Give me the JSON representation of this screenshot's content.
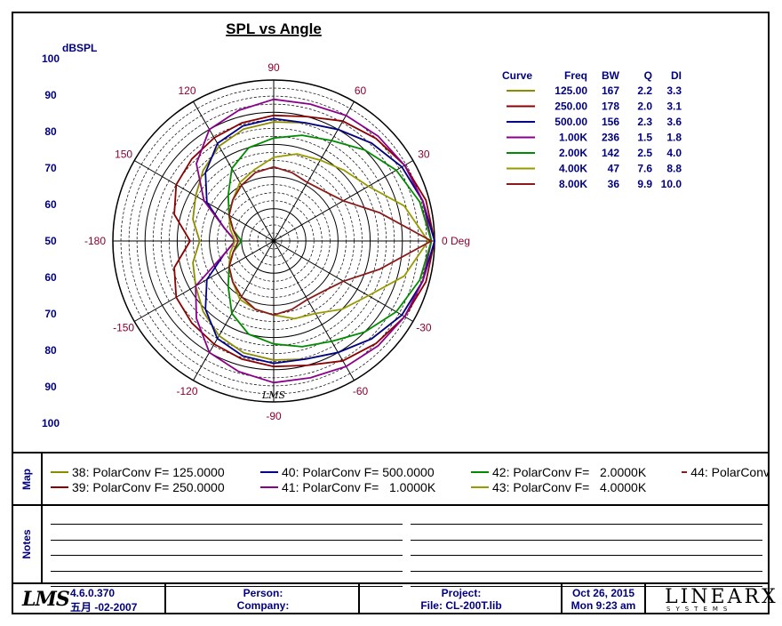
{
  "chart_data": {
    "type": "polar",
    "title": "SPL vs Angle",
    "radial_label": "dBSPL",
    "radial_range": [
      50,
      100
    ],
    "radial_ticks_upper": [
      "100",
      "90",
      "80",
      "70",
      "60",
      "50"
    ],
    "radial_ticks_lower": [
      "60",
      "70",
      "80",
      "90",
      "100"
    ],
    "angle_labels": [
      {
        "angle": 0,
        "text": "0 Deg"
      },
      {
        "angle": 30,
        "text": "30"
      },
      {
        "angle": 60,
        "text": "60"
      },
      {
        "angle": 90,
        "text": "90"
      },
      {
        "angle": 120,
        "text": "120"
      },
      {
        "angle": 150,
        "text": "150"
      },
      {
        "angle": 180,
        "text": "-180"
      },
      {
        "angle": -150,
        "text": "-150"
      },
      {
        "angle": -120,
        "text": "-120"
      },
      {
        "angle": -90,
        "text": "-90"
      },
      {
        "angle": -60,
        "text": "-60"
      },
      {
        "angle": -30,
        "text": "-30"
      }
    ],
    "angles": [
      0,
      15,
      30,
      45,
      60,
      75,
      90,
      105,
      120,
      135,
      150,
      165,
      180,
      195,
      210,
      225,
      240,
      255,
      270,
      285,
      300,
      315,
      330,
      345,
      360
    ],
    "series": [
      {
        "color": "#8b8b00",
        "values": [
          99,
          98,
          96,
          93,
          90,
          88,
          87,
          86,
          84,
          81,
          78,
          76,
          73,
          76,
          78,
          81,
          84,
          86,
          87,
          88,
          90,
          93,
          96,
          98,
          99
        ]
      },
      {
        "color": "#8b0000",
        "values": [
          100,
          99,
          97,
          95,
          93,
          90,
          89,
          88,
          87,
          86,
          85,
          82,
          76,
          82,
          85,
          86,
          87,
          88,
          89,
          90,
          93,
          95,
          97,
          99,
          100
        ]
      },
      {
        "color": "#00008b",
        "values": [
          100,
          98,
          96,
          93,
          90,
          88,
          88,
          87,
          85,
          80,
          74,
          66,
          62,
          66,
          74,
          80,
          85,
          87,
          88,
          88,
          90,
          93,
          96,
          98,
          100
        ]
      },
      {
        "color": "#8b008b",
        "values": [
          99,
          98,
          97,
          96,
          95,
          94,
          94,
          92,
          90,
          84,
          75,
          66,
          62,
          66,
          78,
          84,
          90,
          92,
          94,
          94,
          95,
          96,
          97,
          98,
          99
        ]
      },
      {
        "color": "#008b00",
        "values": [
          99,
          97,
          94,
          90,
          86,
          84,
          82,
          80,
          76,
          70,
          66,
          63,
          60,
          63,
          66,
          70,
          76,
          80,
          82,
          84,
          86,
          90,
          94,
          97,
          99
        ]
      },
      {
        "color": "#999900",
        "values": [
          98,
          92,
          84,
          81,
          79,
          78,
          76,
          73,
          71,
          68,
          66,
          64,
          62,
          64,
          66,
          68,
          71,
          72,
          73,
          75,
          76,
          80,
          84,
          92,
          98
        ]
      },
      {
        "color": "#8b1a1a",
        "values": [
          99,
          84,
          75,
          72,
          71,
          72,
          73,
          72,
          70,
          68,
          66,
          63,
          61,
          63,
          66,
          68,
          70,
          72,
          73,
          72,
          71,
          72,
          75,
          84,
          99
        ]
      }
    ],
    "legend": {
      "headers": [
        "Curve",
        "Freq",
        "BW",
        "Q",
        "DI"
      ],
      "rows": [
        {
          "color": "#8b8b00",
          "freq": "125.00",
          "bw": "167",
          "q": "2.2",
          "di": "3.3"
        },
        {
          "color": "#8b0000",
          "freq": "250.00",
          "bw": "178",
          "q": "2.0",
          "di": "3.1"
        },
        {
          "color": "#00008b",
          "freq": "500.00",
          "bw": "156",
          "q": "2.3",
          "di": "3.6"
        },
        {
          "color": "#8b008b",
          "freq": "1.00K",
          "bw": "236",
          "q": "1.5",
          "di": "1.8"
        },
        {
          "color": "#008b00",
          "freq": "2.00K",
          "bw": "142",
          "q": "2.5",
          "di": "4.0"
        },
        {
          "color": "#999900",
          "freq": "4.00K",
          "bw": "47",
          "q": "7.6",
          "di": "8.8"
        },
        {
          "color": "#8b1a1a",
          "freq": "8.00K",
          "bw": "36",
          "q": "9.9",
          "di": "10.0"
        }
      ]
    },
    "watermark": "LMS"
  },
  "map": {
    "label": "Map",
    "entries": [
      {
        "text": "38: PolarConv F= 125.0000",
        "color": "#8b8b00"
      },
      {
        "text": "39: PolarConv F= 250.0000",
        "color": "#8b0000"
      },
      {
        "text": "40: PolarConv F= 500.0000",
        "color": "#00008b"
      },
      {
        "text": "41: PolarConv F=   1.0000K",
        "color": "#8b008b"
      },
      {
        "text": "42: PolarConv F=   2.0000K",
        "color": "#008b00"
      },
      {
        "text": "43: PolarConv F=   4.0000K",
        "color": "#999900"
      },
      {
        "text": "44: PolarConv",
        "color": "#8b1a1a"
      }
    ]
  },
  "notes": {
    "label": "Notes"
  },
  "footer": {
    "logo": "LMS",
    "version": "4.6.0.370",
    "build_date": "五月 -02-2007",
    "person_label": "Person:",
    "company_label": "Company:",
    "project_label": "Project:",
    "file_label": "File: CL-200T.lib",
    "date": "Oct 26, 2015",
    "time": "Mon  9:23 am",
    "brand": "LINEARX",
    "brand_sub": "SYSTEMS"
  }
}
